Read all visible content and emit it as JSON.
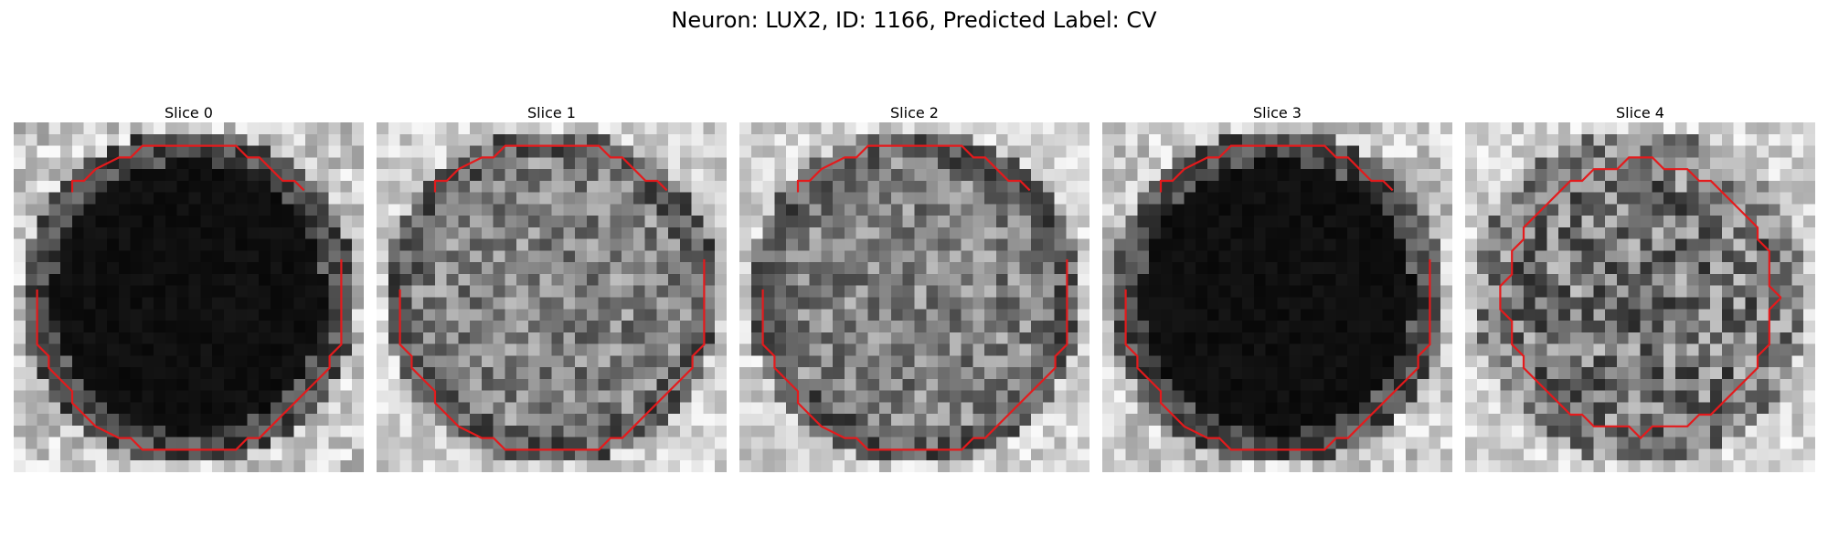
{
  "figure": {
    "title": "Neuron: LUX2, ID: 1166, Predicted Label: CV",
    "contour_color": "#e41a1c"
  },
  "panels": [
    {
      "title": "Slice 0",
      "cell_style": "dark",
      "contour": "broken"
    },
    {
      "title": "Slice 1",
      "cell_style": "mid",
      "contour": "broken"
    },
    {
      "title": "Slice 2",
      "cell_style": "mid",
      "contour": "broken"
    },
    {
      "title": "Slice 3",
      "cell_style": "dark",
      "contour": "broken"
    },
    {
      "title": "Slice 4",
      "cell_style": "light",
      "contour": "closed"
    }
  ]
}
